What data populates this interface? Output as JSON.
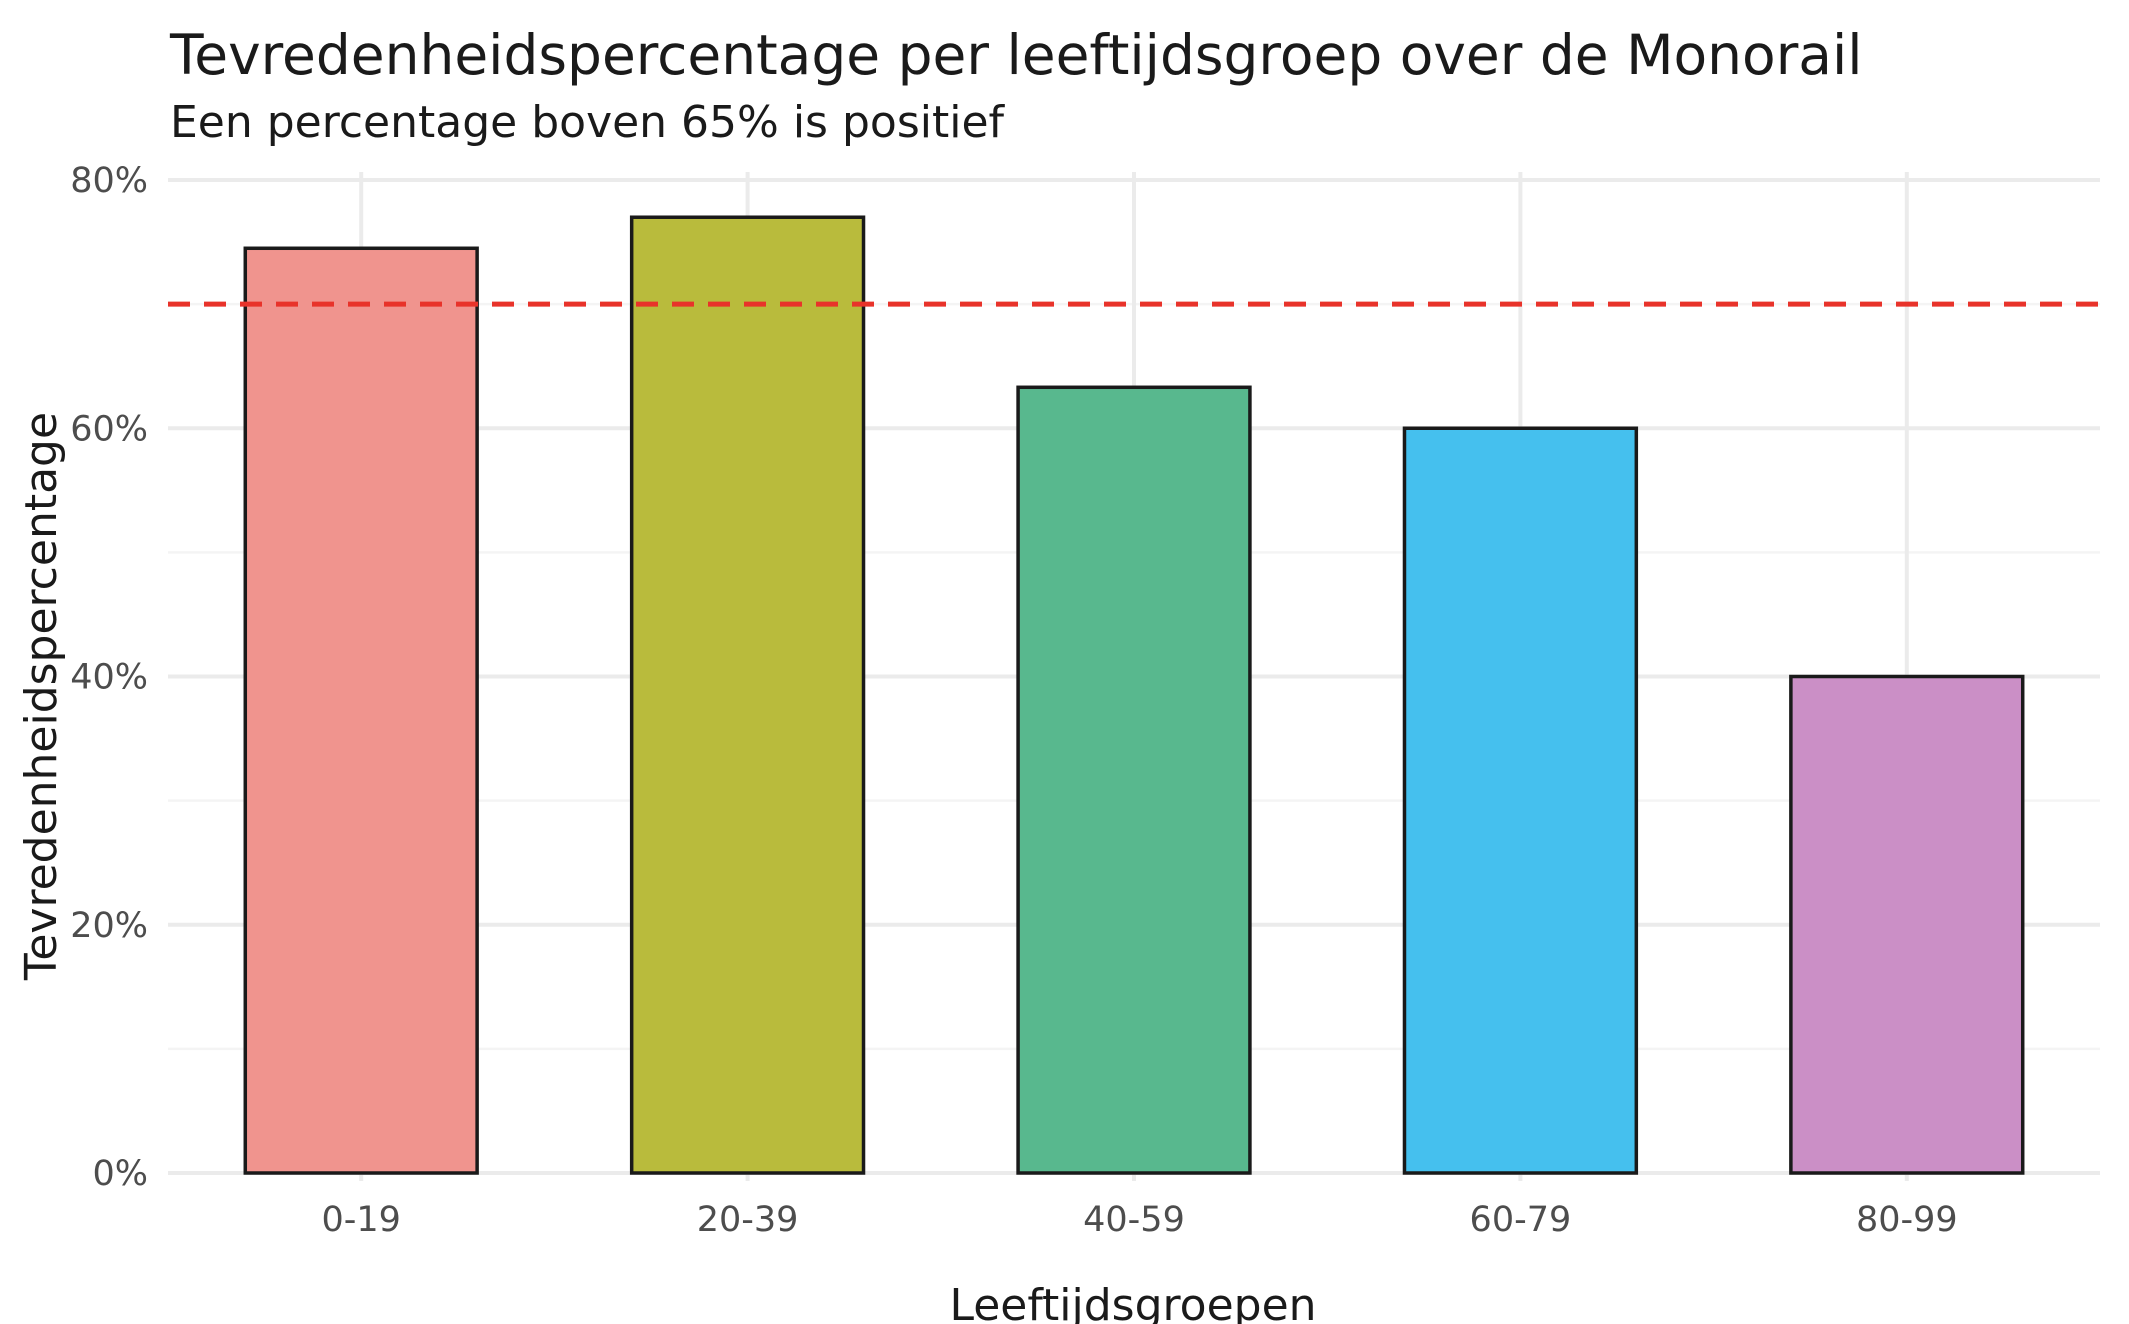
{
  "chart_data": {
    "type": "bar",
    "title": "Tevredenheidspercentage per leeftijdsgroep over de Monorail",
    "subtitle": "Een percentage boven 65% is positief",
    "xlabel": "Leeftijdsgroepen",
    "ylabel": "Tevredenheidspercentage",
    "categories": [
      "0-19",
      "20-39",
      "40-59",
      "60-79",
      "80-99"
    ],
    "values": [
      74.5,
      77,
      63.3,
      60,
      40
    ],
    "colors": [
      "#f0948e",
      "#b9bb3c",
      "#58b88e",
      "#45c0ee",
      "#cb8fc6"
    ],
    "ylim": [
      0,
      80
    ],
    "yticks": [
      0,
      20,
      40,
      60,
      80
    ],
    "ytick_labels": [
      "0%",
      "20%",
      "40%",
      "60%",
      "80%"
    ],
    "reference_line": {
      "value": 70,
      "style": "dashed",
      "color": "#e8332a"
    },
    "grid": true,
    "legend": "none"
  }
}
